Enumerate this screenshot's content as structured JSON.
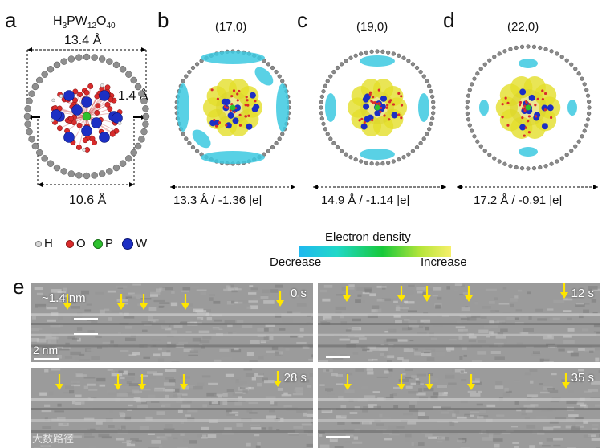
{
  "panels": {
    "a": {
      "label": "a",
      "formula_main": "H",
      "formula_sub1": "3",
      "formula_mid": "PW",
      "formula_sub2": "12",
      "formula_o": "O",
      "formula_sub3": "40",
      "top_dim": "13.4 Å",
      "gap_dim": "1.4 Å",
      "bottom_dim": "10.6 Å"
    },
    "b": {
      "label": "b",
      "tube": "(17,0)",
      "caption": "13.3 Å / -1.36 |e|"
    },
    "c": {
      "label": "c",
      "tube": "(19,0)",
      "caption": "14.9 Å / -1.14 |e|"
    },
    "d": {
      "label": "d",
      "tube": "(22,0)",
      "caption": "17.2 Å / -0.91 |e|"
    },
    "e": {
      "label": "e",
      "frames": [
        {
          "time": "0 s",
          "annotation": "~1.4 nm",
          "scalebar": "2 nm"
        },
        {
          "time": "12 s"
        },
        {
          "time": "28 s"
        },
        {
          "time": "35 s"
        }
      ]
    }
  },
  "atom_legend": [
    {
      "symbol": "H",
      "color": "#d8d8d8"
    },
    {
      "symbol": "O",
      "color": "#d92b2b"
    },
    {
      "symbol": "P",
      "color": "#2ec12e"
    },
    {
      "symbol": "W",
      "color": "#1c2fc4"
    }
  ],
  "density_legend": {
    "title": "Electron density",
    "low": "Decrease",
    "high": "Increase",
    "colors": [
      "#1fb8f0",
      "#17c93a",
      "#f7f06a"
    ]
  },
  "watermark": "大数路径"
}
